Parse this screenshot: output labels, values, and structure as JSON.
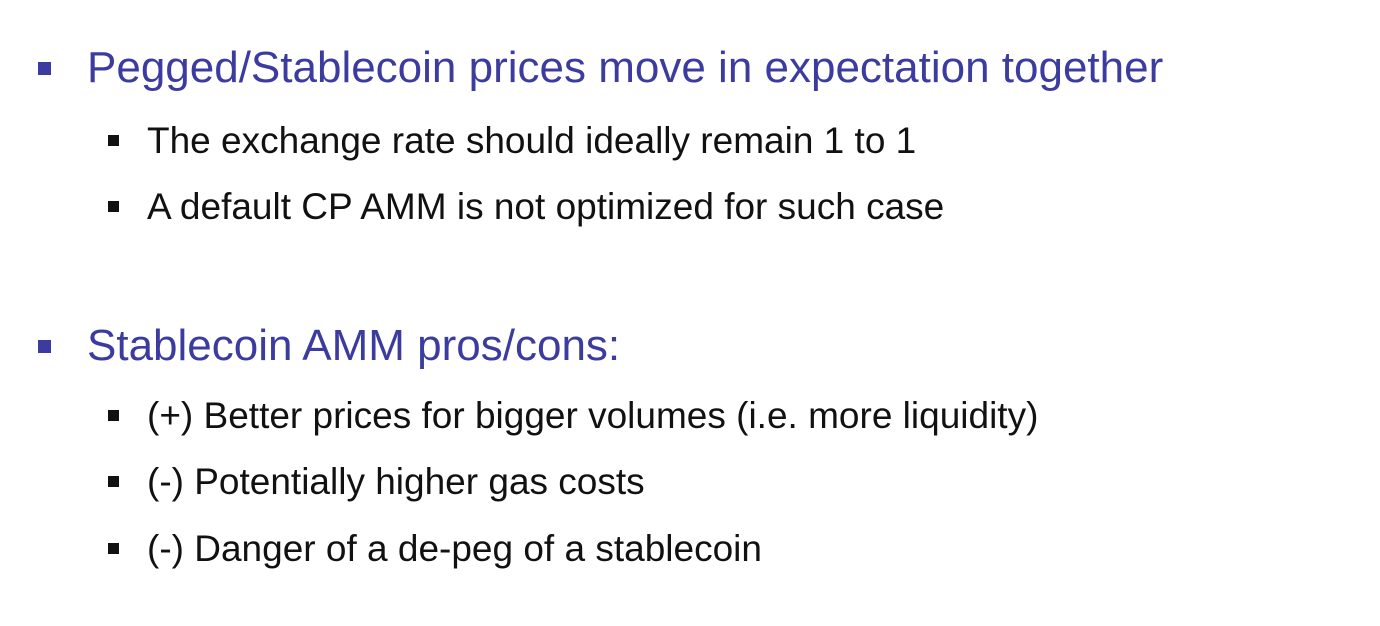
{
  "slide": {
    "sections": [
      {
        "heading": "Pegged/Stablecoin prices move in expectation together",
        "items": [
          "The exchange rate should ideally remain 1 to 1",
          "A default CP AMM is not optimized for such case"
        ]
      },
      {
        "heading": "Stablecoin AMM pros/cons:",
        "items": [
          "(+) Better prices for bigger volumes (i.e. more liquidity)",
          "(-) Potentially higher gas costs",
          "(-) Danger of a de-peg of a stablecoin"
        ]
      }
    ],
    "colors": {
      "heading": "#3c3ca0",
      "body": "#111111",
      "background": "#ffffff"
    }
  }
}
